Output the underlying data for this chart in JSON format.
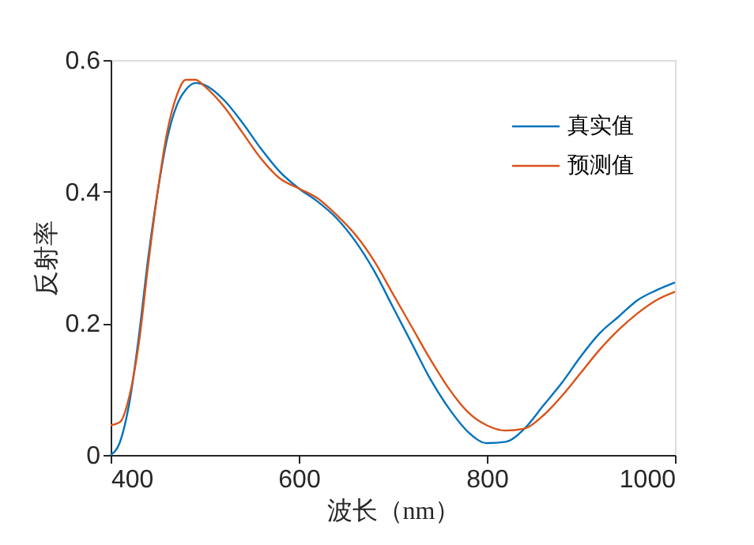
{
  "chart_data": {
    "type": "line",
    "xlabel": "波长（nm）",
    "ylabel": "反射率",
    "x": [
      400,
      410,
      420,
      430,
      440,
      450,
      460,
      470,
      480,
      490,
      500,
      520,
      540,
      560,
      580,
      600,
      620,
      640,
      660,
      680,
      700,
      720,
      740,
      760,
      780,
      800,
      820,
      840,
      860,
      880,
      900,
      920,
      940,
      960,
      980,
      1000
    ],
    "series": [
      {
        "name": "真实值",
        "color": "#0072bd",
        "values": [
          0.0,
          0.02,
          0.08,
          0.18,
          0.3,
          0.4,
          0.48,
          0.53,
          0.555,
          0.565,
          0.562,
          0.54,
          0.505,
          0.465,
          0.43,
          0.405,
          0.385,
          0.36,
          0.325,
          0.28,
          0.225,
          0.17,
          0.115,
          0.07,
          0.035,
          0.018,
          0.02,
          0.04,
          0.075,
          0.11,
          0.15,
          0.185,
          0.21,
          0.235,
          0.25,
          0.262
        ]
      },
      {
        "name": "预测值",
        "color": "#d95319",
        "values": [
          0.045,
          0.05,
          0.09,
          0.17,
          0.29,
          0.4,
          0.49,
          0.545,
          0.57,
          0.57,
          0.56,
          0.53,
          0.49,
          0.45,
          0.42,
          0.405,
          0.39,
          0.365,
          0.335,
          0.295,
          0.245,
          0.195,
          0.145,
          0.1,
          0.065,
          0.045,
          0.037,
          0.04,
          0.06,
          0.09,
          0.125,
          0.16,
          0.19,
          0.215,
          0.235,
          0.248
        ]
      }
    ],
    "xlim": [
      400,
      1000
    ],
    "xticks": [
      400,
      600,
      800,
      1000
    ],
    "ylim": [
      0,
      0.6
    ],
    "yticks": [
      0,
      0.2,
      0.4,
      0.6
    ],
    "grid": false,
    "legend": "top right",
    "line_style": "solid",
    "marker": "none"
  }
}
